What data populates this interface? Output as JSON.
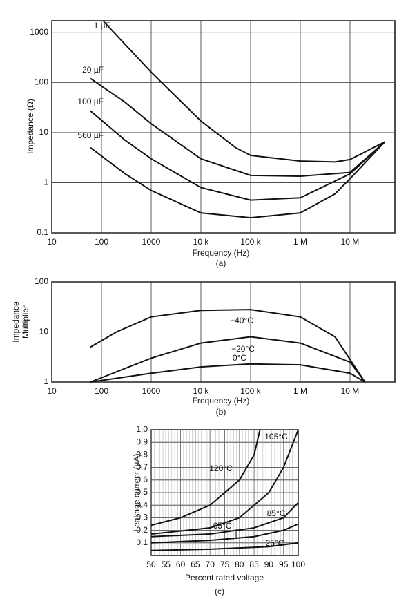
{
  "chart_data": [
    {
      "type": "line",
      "caption": "(a)",
      "xlabel": "Frequency (Hz)",
      "ylabel": "Impedance (Ω)",
      "xlog": true,
      "ylog": true,
      "grid": true,
      "xlim": [
        10,
        80000000
      ],
      "ylim": [
        0.1,
        1700
      ],
      "xticks": [
        10,
        100,
        1000,
        {
          "value": 10000,
          "label": "10 k"
        },
        {
          "value": 100000,
          "label": "100 k"
        },
        {
          "value": 1000000,
          "label": "1 M"
        },
        {
          "value": 10000000,
          "label": "10 M"
        }
      ],
      "yticks": [
        0.1,
        1,
        10,
        100,
        1000
      ],
      "series": [
        {
          "name": "1 µF",
          "color": "#111111",
          "x": [
            110,
            1000,
            10000,
            50000,
            100000,
            1000000,
            5000000,
            10000000,
            50000000
          ],
          "values": [
            1650,
            160,
            17,
            5,
            3.5,
            2.7,
            2.6,
            2.9,
            6.5
          ]
        },
        {
          "name": "20 µF",
          "color": "#111111",
          "x": [
            60,
            300,
            1000,
            10000,
            100000,
            1000000,
            10000000,
            50000000
          ],
          "values": [
            120,
            40,
            15,
            3,
            1.4,
            1.35,
            1.6,
            6.5
          ]
        },
        {
          "name": "100 µF",
          "color": "#111111",
          "x": [
            60,
            300,
            1000,
            10000,
            100000,
            1000000,
            10000000,
            50000000
          ],
          "values": [
            27,
            7,
            3,
            0.8,
            0.45,
            0.5,
            1.5,
            6.5
          ]
        },
        {
          "name": "560 µF",
          "color": "#111111",
          "x": [
            60,
            300,
            1000,
            10000,
            100000,
            1000000,
            5000000,
            10000000,
            50000000
          ],
          "values": [
            5,
            1.5,
            0.7,
            0.25,
            0.2,
            0.25,
            0.6,
            1.2,
            6.5
          ]
        }
      ]
    },
    {
      "type": "line",
      "caption": "(b)",
      "xlabel": "Frequency (Hz)",
      "ylabel": "Impedance Multiplier",
      "xlog": true,
      "ylog": true,
      "grid": true,
      "xlim": [
        10,
        80000000
      ],
      "ylim": [
        1,
        100
      ],
      "xticks": [
        10,
        100,
        1000,
        {
          "value": 10000,
          "label": "10 k"
        },
        {
          "value": 100000,
          "label": "100 k"
        },
        {
          "value": 1000000,
          "label": "1 M"
        },
        {
          "value": 10000000,
          "label": "10 M"
        }
      ],
      "yticks": [
        1,
        10,
        100
      ],
      "series": [
        {
          "name": "−40°C",
          "color": "#111111",
          "x": [
            60,
            200,
            1000,
            10000,
            100000,
            1000000,
            5000000,
            20000000
          ],
          "values": [
            5,
            10,
            20,
            27,
            28,
            20,
            8,
            1
          ]
        },
        {
          "name": "−20°C",
          "color": "#111111",
          "x": [
            60,
            1000,
            10000,
            100000,
            1000000,
            10000000,
            20000000
          ],
          "values": [
            1,
            3,
            6,
            8,
            6,
            2.5,
            1
          ]
        },
        {
          "name": "0°C",
          "color": "#111111",
          "x": [
            60,
            1000,
            10000,
            100000,
            1000000,
            10000000,
            20000000
          ],
          "values": [
            1,
            1.5,
            2,
            2.3,
            2.2,
            1.5,
            1
          ]
        }
      ]
    },
    {
      "type": "line",
      "caption": "(c)",
      "xlabel": "Percent rated voltage",
      "ylabel": "Leakage current (µA)",
      "xlog": false,
      "ylog": false,
      "grid": true,
      "xlim": [
        50,
        100
      ],
      "ylim": [
        0,
        1
      ],
      "xticks": [
        50,
        55,
        60,
        65,
        70,
        75,
        80,
        85,
        90,
        95,
        100
      ],
      "yticks": [
        0.1,
        0.2,
        0.3,
        0.4,
        0.5,
        0.6,
        0.7,
        0.8,
        0.9,
        {
          "value": 1,
          "label": "1.0"
        }
      ],
      "series": [
        {
          "name": "120°C",
          "color": "#111111",
          "x": [
            50,
            60,
            70,
            80,
            85,
            87
          ],
          "values": [
            0.24,
            0.3,
            0.4,
            0.6,
            0.8,
            1.0
          ]
        },
        {
          "name": "105°C",
          "color": "#111111",
          "x": [
            50,
            70,
            80,
            90,
            95,
            100
          ],
          "values": [
            0.17,
            0.22,
            0.3,
            0.5,
            0.7,
            1.0
          ]
        },
        {
          "name": "85°C",
          "color": "#111111",
          "x": [
            50,
            70,
            85,
            95,
            100
          ],
          "values": [
            0.15,
            0.17,
            0.22,
            0.3,
            0.42
          ]
        },
        {
          "name": "65°C",
          "color": "#111111",
          "x": [
            50,
            70,
            85,
            95,
            100
          ],
          "values": [
            0.1,
            0.12,
            0.15,
            0.2,
            0.25
          ]
        },
        {
          "name": "25°C",
          "color": "#111111",
          "x": [
            50,
            70,
            90,
            100
          ],
          "values": [
            0.04,
            0.05,
            0.07,
            0.1
          ]
        }
      ]
    }
  ]
}
